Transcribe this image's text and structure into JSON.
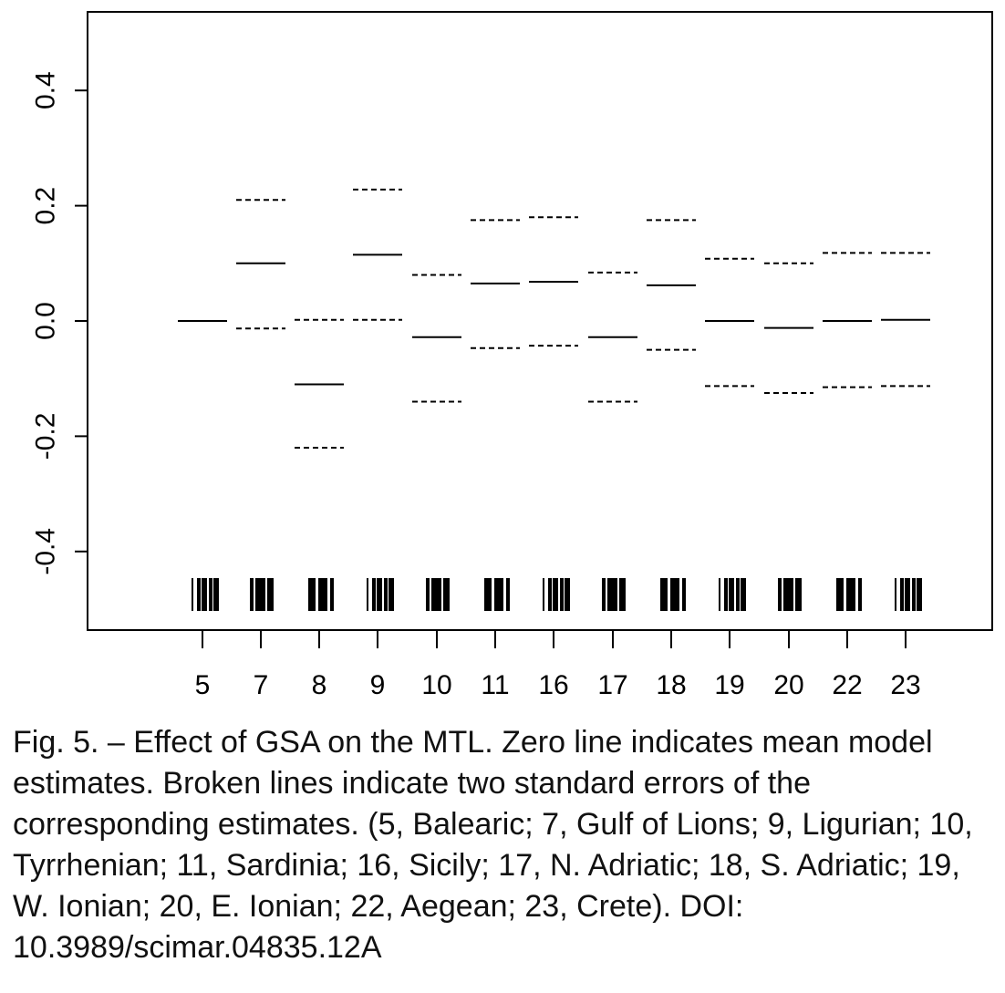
{
  "chart_data": {
    "type": "line",
    "title": "",
    "xlabel": "",
    "ylabel": "",
    "categories": [
      "5",
      "7",
      "8",
      "9",
      "10",
      "11",
      "16",
      "17",
      "18",
      "19",
      "20",
      "22",
      "23"
    ],
    "ylim": [
      -0.53,
      0.53
    ],
    "yticks": [
      -0.4,
      -0.2,
      0.0,
      0.2,
      0.4
    ],
    "ytick_labels": [
      "-0.4",
      "-0.2",
      "0.0",
      "0.2",
      "0.4"
    ],
    "grid": false,
    "series": [
      {
        "role": "estimate",
        "values": [
          0.0,
          0.1,
          -0.11,
          0.115,
          -0.028,
          0.065,
          0.068,
          -0.028,
          0.062,
          0.0,
          -0.012,
          0.0,
          0.002
        ]
      },
      {
        "role": "upper_2se",
        "values": [
          null,
          0.21,
          0.002,
          0.228,
          0.08,
          0.175,
          0.18,
          0.084,
          0.175,
          0.108,
          0.1,
          0.118,
          0.118
        ]
      },
      {
        "role": "lower_2se",
        "values": [
          null,
          -0.013,
          -0.22,
          0.002,
          -0.14,
          -0.047,
          -0.043,
          -0.14,
          -0.05,
          -0.113,
          -0.125,
          -0.115,
          -0.113
        ]
      }
    ]
  },
  "caption": "Fig. 5. – Effect of GSA on the MTL. Zero line indicates mean model estimates. Broken lines indicate two standard errors of the corresponding estimates. (5, Balearic; 7, Gulf of Lions; 9, Ligurian; 10, Tyrrhenian; 11, Sardinia; 16, Sicily; 17, N. Adriatic; 18, S. Adriatic; 19, W. Ionian; 20, E. Ionian; 22, Aegean; 23, Crete). DOI: 10.3989/scimar.04835.12A"
}
